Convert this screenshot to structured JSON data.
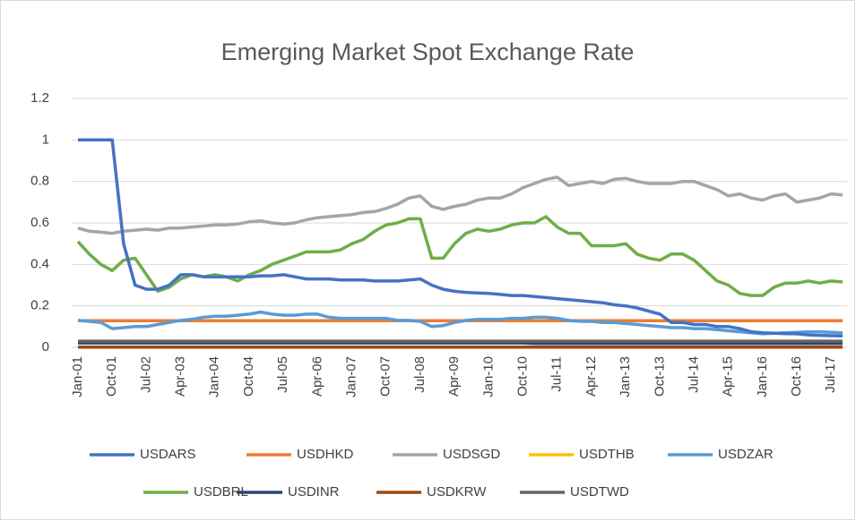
{
  "chart_data": {
    "type": "line",
    "title": "Emerging Market Spot Exchange Rate",
    "categories": [
      "Jan-01",
      null,
      null,
      "Oct-01",
      null,
      null,
      "Jul-02",
      null,
      null,
      "Apr-03",
      null,
      null,
      "Jan-04",
      null,
      null,
      "Oct-04",
      null,
      null,
      "Jul-05",
      null,
      null,
      "Apr-06",
      null,
      null,
      "Jan-07",
      null,
      null,
      "Oct-07",
      null,
      null,
      "Jul-08",
      null,
      null,
      "Apr-09",
      null,
      null,
      "Jan-10",
      null,
      null,
      "Oct-10",
      null,
      null,
      "Jul-11",
      null,
      null,
      "Apr-12",
      null,
      null,
      "Jan-13",
      null,
      null,
      "Oct-13",
      null,
      null,
      "Jul-14",
      null,
      null,
      "Apr-15",
      null,
      null,
      "Jan-16",
      null,
      null,
      "Oct-16",
      null,
      null,
      "Jul-17",
      null
    ],
    "ylim": [
      0,
      1.2
    ],
    "yticks": [
      0,
      0.2,
      0.4,
      0.6,
      0.8,
      1,
      1.2
    ],
    "grid": true,
    "legend": "bottom",
    "series": [
      {
        "name": "USDARS",
        "color": "#4472c4",
        "values": [
          1,
          1,
          1,
          1,
          0.5,
          0.3,
          0.28,
          0.28,
          0.3,
          0.35,
          0.35,
          0.34,
          0.34,
          0.34,
          0.34,
          0.34,
          0.345,
          0.345,
          0.35,
          0.34,
          0.33,
          0.33,
          0.33,
          0.325,
          0.325,
          0.325,
          0.32,
          0.32,
          0.32,
          0.325,
          0.33,
          0.3,
          0.28,
          0.27,
          0.265,
          0.262,
          0.26,
          0.255,
          0.25,
          0.25,
          0.245,
          0.24,
          0.235,
          0.23,
          0.225,
          0.22,
          0.215,
          0.205,
          0.2,
          0.19,
          0.175,
          0.16,
          0.12,
          0.12,
          0.11,
          0.11,
          0.1,
          0.1,
          0.09,
          0.075,
          0.07,
          0.068,
          0.066,
          0.065,
          0.06,
          0.058,
          0.056,
          0.055
        ]
      },
      {
        "name": "USDHKD",
        "color": "#ed7d31",
        "values": [
          0.128,
          0.128,
          0.128,
          0.128,
          0.128,
          0.128,
          0.128,
          0.128,
          0.128,
          0.128,
          0.128,
          0.128,
          0.128,
          0.128,
          0.128,
          0.128,
          0.128,
          0.128,
          0.128,
          0.128,
          0.128,
          0.128,
          0.128,
          0.128,
          0.128,
          0.128,
          0.128,
          0.128,
          0.128,
          0.128,
          0.128,
          0.128,
          0.128,
          0.128,
          0.128,
          0.128,
          0.128,
          0.128,
          0.128,
          0.128,
          0.128,
          0.128,
          0.128,
          0.128,
          0.128,
          0.128,
          0.128,
          0.128,
          0.128,
          0.128,
          0.128,
          0.128,
          0.128,
          0.128,
          0.128,
          0.128,
          0.128,
          0.128,
          0.128,
          0.128,
          0.128,
          0.128,
          0.128,
          0.128,
          0.128,
          0.128,
          0.128,
          0.128
        ]
      },
      {
        "name": "USDSGD",
        "color": "#a5a5a5",
        "values": [
          0.575,
          0.56,
          0.555,
          0.55,
          0.56,
          0.565,
          0.57,
          0.565,
          0.575,
          0.575,
          0.58,
          0.585,
          0.59,
          0.59,
          0.595,
          0.605,
          0.61,
          0.6,
          0.595,
          0.6,
          0.615,
          0.625,
          0.63,
          0.635,
          0.64,
          0.65,
          0.655,
          0.67,
          0.69,
          0.72,
          0.73,
          0.68,
          0.665,
          0.68,
          0.69,
          0.71,
          0.72,
          0.72,
          0.74,
          0.77,
          0.79,
          0.81,
          0.82,
          0.78,
          0.79,
          0.8,
          0.79,
          0.81,
          0.815,
          0.8,
          0.79,
          0.79,
          0.79,
          0.8,
          0.8,
          0.78,
          0.76,
          0.73,
          0.74,
          0.72,
          0.71,
          0.73,
          0.74,
          0.7,
          0.71,
          0.72,
          0.74,
          0.735
        ]
      },
      {
        "name": "USDTHB",
        "color": "#ffc000",
        "values": [
          0.024,
          0.024,
          0.024,
          0.024,
          0.024,
          0.024,
          0.024,
          0.024,
          0.024,
          0.024,
          0.024,
          0.024,
          0.024,
          0.024,
          0.024,
          0.024,
          0.024,
          0.024,
          0.024,
          0.024,
          0.024,
          0.024,
          0.024,
          0.024,
          0.024,
          0.024,
          0.024,
          0.024,
          0.024,
          0.024,
          0.024,
          0.024,
          0.024,
          0.024,
          0.024,
          0.024,
          0.024,
          0.024,
          0.024,
          0.024,
          0.024,
          0.024,
          0.024,
          0.024,
          0.024,
          0.024,
          0.024,
          0.024,
          0.024,
          0.024,
          0.024,
          0.024,
          0.024,
          0.024,
          0.024,
          0.024,
          0.024,
          0.024,
          0.024,
          0.024,
          0.024,
          0.024,
          0.024,
          0.024,
          0.024,
          0.024,
          0.024,
          0.024
        ]
      },
      {
        "name": "USDZAR",
        "color": "#5b9bd5",
        "values": [
          0.13,
          0.125,
          0.12,
          0.09,
          0.095,
          0.1,
          0.1,
          0.11,
          0.12,
          0.13,
          0.135,
          0.145,
          0.15,
          0.15,
          0.155,
          0.16,
          0.17,
          0.16,
          0.155,
          0.155,
          0.16,
          0.16,
          0.145,
          0.14,
          0.14,
          0.14,
          0.14,
          0.14,
          0.13,
          0.13,
          0.125,
          0.1,
          0.105,
          0.12,
          0.13,
          0.135,
          0.135,
          0.135,
          0.14,
          0.14,
          0.145,
          0.145,
          0.14,
          0.13,
          0.125,
          0.125,
          0.12,
          0.12,
          0.115,
          0.11,
          0.105,
          0.1,
          0.095,
          0.095,
          0.09,
          0.09,
          0.085,
          0.08,
          0.075,
          0.07,
          0.065,
          0.068,
          0.07,
          0.072,
          0.075,
          0.075,
          0.072,
          0.07
        ]
      },
      {
        "name": "USDBRL",
        "color": "#70ad47",
        "values": [
          0.51,
          0.45,
          0.4,
          0.37,
          0.42,
          0.43,
          0.35,
          0.27,
          0.29,
          0.33,
          0.35,
          0.34,
          0.35,
          0.34,
          0.32,
          0.35,
          0.37,
          0.4,
          0.42,
          0.44,
          0.46,
          0.46,
          0.46,
          0.47,
          0.5,
          0.52,
          0.56,
          0.59,
          0.6,
          0.62,
          0.62,
          0.43,
          0.43,
          0.5,
          0.55,
          0.57,
          0.56,
          0.57,
          0.59,
          0.6,
          0.6,
          0.63,
          0.58,
          0.55,
          0.55,
          0.49,
          0.49,
          0.49,
          0.5,
          0.45,
          0.43,
          0.42,
          0.45,
          0.45,
          0.42,
          0.37,
          0.32,
          0.3,
          0.26,
          0.25,
          0.25,
          0.29,
          0.31,
          0.31,
          0.32,
          0.31,
          0.32,
          0.315
        ]
      },
      {
        "name": "USDINR",
        "color": "#264478",
        "values": [
          0.021,
          0.021,
          0.021,
          0.021,
          0.021,
          0.021,
          0.021,
          0.021,
          0.021,
          0.021,
          0.021,
          0.021,
          0.021,
          0.021,
          0.021,
          0.021,
          0.021,
          0.021,
          0.021,
          0.021,
          0.021,
          0.021,
          0.021,
          0.021,
          0.021,
          0.021,
          0.021,
          0.021,
          0.021,
          0.021,
          0.021,
          0.021,
          0.021,
          0.021,
          0.021,
          0.021,
          0.021,
          0.021,
          0.021,
          0.021,
          0.019,
          0.019,
          0.019,
          0.019,
          0.019,
          0.019,
          0.019,
          0.019,
          0.019,
          0.019,
          0.019,
          0.019,
          0.019,
          0.019,
          0.019,
          0.019,
          0.019,
          0.019,
          0.019,
          0.019,
          0.019,
          0.019,
          0.019,
          0.019,
          0.019,
          0.019,
          0.019,
          0.019
        ]
      },
      {
        "name": "USDKRW",
        "color": "#9e480e",
        "values": [
          0.0008,
          0.0008,
          0.0008,
          0.0008,
          0.0008,
          0.0008,
          0.0008,
          0.0008,
          0.0008,
          0.0008,
          0.0008,
          0.0008,
          0.0008,
          0.0008,
          0.0008,
          0.0008,
          0.0008,
          0.0008,
          0.0008,
          0.0008,
          0.0008,
          0.0008,
          0.0008,
          0.0008,
          0.0008,
          0.0008,
          0.0008,
          0.0008,
          0.0008,
          0.0008,
          0.0008,
          0.0008,
          0.0008,
          0.0008,
          0.0008,
          0.0008,
          0.0008,
          0.0008,
          0.0008,
          0.0008,
          0.0008,
          0.0008,
          0.0008,
          0.0008,
          0.0008,
          0.0008,
          0.0008,
          0.0008,
          0.0008,
          0.0008,
          0.0008,
          0.0008,
          0.0008,
          0.0008,
          0.0008,
          0.0008,
          0.0008,
          0.0008,
          0.0008,
          0.0008,
          0.0008,
          0.0008,
          0.0008,
          0.0008,
          0.0008,
          0.0008,
          0.0008,
          0.0008
        ]
      },
      {
        "name": "USDTWD",
        "color": "#636363",
        "values": [
          0.03,
          0.03,
          0.03,
          0.03,
          0.03,
          0.03,
          0.03,
          0.03,
          0.03,
          0.03,
          0.03,
          0.03,
          0.03,
          0.03,
          0.03,
          0.03,
          0.03,
          0.03,
          0.03,
          0.03,
          0.03,
          0.03,
          0.03,
          0.03,
          0.03,
          0.03,
          0.03,
          0.03,
          0.03,
          0.03,
          0.03,
          0.03,
          0.03,
          0.03,
          0.03,
          0.03,
          0.03,
          0.03,
          0.03,
          0.03,
          0.03,
          0.03,
          0.03,
          0.03,
          0.03,
          0.03,
          0.03,
          0.03,
          0.03,
          0.03,
          0.03,
          0.03,
          0.03,
          0.03,
          0.03,
          0.03,
          0.03,
          0.03,
          0.03,
          0.03,
          0.03,
          0.03,
          0.03,
          0.03,
          0.03,
          0.03,
          0.03,
          0.03
        ]
      }
    ]
  }
}
